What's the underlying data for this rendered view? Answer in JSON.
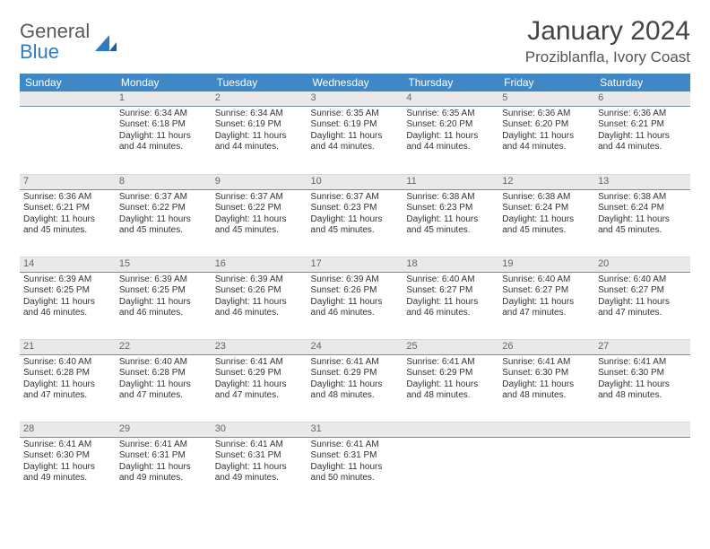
{
  "logo": {
    "line1": "General",
    "line2": "Blue"
  },
  "title": "January 2024",
  "location": "Proziblanfla, Ivory Coast",
  "colors": {
    "header_bg": "#3f88c5",
    "header_text": "#ffffff",
    "daynum_bg": "#e9e9e9",
    "daynum_border": "#6f91b0",
    "text": "#333333",
    "logo_gray": "#55595c",
    "logo_blue": "#2f7bbf"
  },
  "weekdays": [
    "Sunday",
    "Monday",
    "Tuesday",
    "Wednesday",
    "Thursday",
    "Friday",
    "Saturday"
  ],
  "weeks": [
    [
      {
        "n": "",
        "sr": "",
        "ss": "",
        "d1": "",
        "d2": ""
      },
      {
        "n": "1",
        "sr": "Sunrise: 6:34 AM",
        "ss": "Sunset: 6:18 PM",
        "d1": "Daylight: 11 hours",
        "d2": "and 44 minutes."
      },
      {
        "n": "2",
        "sr": "Sunrise: 6:34 AM",
        "ss": "Sunset: 6:19 PM",
        "d1": "Daylight: 11 hours",
        "d2": "and 44 minutes."
      },
      {
        "n": "3",
        "sr": "Sunrise: 6:35 AM",
        "ss": "Sunset: 6:19 PM",
        "d1": "Daylight: 11 hours",
        "d2": "and 44 minutes."
      },
      {
        "n": "4",
        "sr": "Sunrise: 6:35 AM",
        "ss": "Sunset: 6:20 PM",
        "d1": "Daylight: 11 hours",
        "d2": "and 44 minutes."
      },
      {
        "n": "5",
        "sr": "Sunrise: 6:36 AM",
        "ss": "Sunset: 6:20 PM",
        "d1": "Daylight: 11 hours",
        "d2": "and 44 minutes."
      },
      {
        "n": "6",
        "sr": "Sunrise: 6:36 AM",
        "ss": "Sunset: 6:21 PM",
        "d1": "Daylight: 11 hours",
        "d2": "and 44 minutes."
      }
    ],
    [
      {
        "n": "7",
        "sr": "Sunrise: 6:36 AM",
        "ss": "Sunset: 6:21 PM",
        "d1": "Daylight: 11 hours",
        "d2": "and 45 minutes."
      },
      {
        "n": "8",
        "sr": "Sunrise: 6:37 AM",
        "ss": "Sunset: 6:22 PM",
        "d1": "Daylight: 11 hours",
        "d2": "and 45 minutes."
      },
      {
        "n": "9",
        "sr": "Sunrise: 6:37 AM",
        "ss": "Sunset: 6:22 PM",
        "d1": "Daylight: 11 hours",
        "d2": "and 45 minutes."
      },
      {
        "n": "10",
        "sr": "Sunrise: 6:37 AM",
        "ss": "Sunset: 6:23 PM",
        "d1": "Daylight: 11 hours",
        "d2": "and 45 minutes."
      },
      {
        "n": "11",
        "sr": "Sunrise: 6:38 AM",
        "ss": "Sunset: 6:23 PM",
        "d1": "Daylight: 11 hours",
        "d2": "and 45 minutes."
      },
      {
        "n": "12",
        "sr": "Sunrise: 6:38 AM",
        "ss": "Sunset: 6:24 PM",
        "d1": "Daylight: 11 hours",
        "d2": "and 45 minutes."
      },
      {
        "n": "13",
        "sr": "Sunrise: 6:38 AM",
        "ss": "Sunset: 6:24 PM",
        "d1": "Daylight: 11 hours",
        "d2": "and 45 minutes."
      }
    ],
    [
      {
        "n": "14",
        "sr": "Sunrise: 6:39 AM",
        "ss": "Sunset: 6:25 PM",
        "d1": "Daylight: 11 hours",
        "d2": "and 46 minutes."
      },
      {
        "n": "15",
        "sr": "Sunrise: 6:39 AM",
        "ss": "Sunset: 6:25 PM",
        "d1": "Daylight: 11 hours",
        "d2": "and 46 minutes."
      },
      {
        "n": "16",
        "sr": "Sunrise: 6:39 AM",
        "ss": "Sunset: 6:26 PM",
        "d1": "Daylight: 11 hours",
        "d2": "and 46 minutes."
      },
      {
        "n": "17",
        "sr": "Sunrise: 6:39 AM",
        "ss": "Sunset: 6:26 PM",
        "d1": "Daylight: 11 hours",
        "d2": "and 46 minutes."
      },
      {
        "n": "18",
        "sr": "Sunrise: 6:40 AM",
        "ss": "Sunset: 6:27 PM",
        "d1": "Daylight: 11 hours",
        "d2": "and 46 minutes."
      },
      {
        "n": "19",
        "sr": "Sunrise: 6:40 AM",
        "ss": "Sunset: 6:27 PM",
        "d1": "Daylight: 11 hours",
        "d2": "and 47 minutes."
      },
      {
        "n": "20",
        "sr": "Sunrise: 6:40 AM",
        "ss": "Sunset: 6:27 PM",
        "d1": "Daylight: 11 hours",
        "d2": "and 47 minutes."
      }
    ],
    [
      {
        "n": "21",
        "sr": "Sunrise: 6:40 AM",
        "ss": "Sunset: 6:28 PM",
        "d1": "Daylight: 11 hours",
        "d2": "and 47 minutes."
      },
      {
        "n": "22",
        "sr": "Sunrise: 6:40 AM",
        "ss": "Sunset: 6:28 PM",
        "d1": "Daylight: 11 hours",
        "d2": "and 47 minutes."
      },
      {
        "n": "23",
        "sr": "Sunrise: 6:41 AM",
        "ss": "Sunset: 6:29 PM",
        "d1": "Daylight: 11 hours",
        "d2": "and 47 minutes."
      },
      {
        "n": "24",
        "sr": "Sunrise: 6:41 AM",
        "ss": "Sunset: 6:29 PM",
        "d1": "Daylight: 11 hours",
        "d2": "and 48 minutes."
      },
      {
        "n": "25",
        "sr": "Sunrise: 6:41 AM",
        "ss": "Sunset: 6:29 PM",
        "d1": "Daylight: 11 hours",
        "d2": "and 48 minutes."
      },
      {
        "n": "26",
        "sr": "Sunrise: 6:41 AM",
        "ss": "Sunset: 6:30 PM",
        "d1": "Daylight: 11 hours",
        "d2": "and 48 minutes."
      },
      {
        "n": "27",
        "sr": "Sunrise: 6:41 AM",
        "ss": "Sunset: 6:30 PM",
        "d1": "Daylight: 11 hours",
        "d2": "and 48 minutes."
      }
    ],
    [
      {
        "n": "28",
        "sr": "Sunrise: 6:41 AM",
        "ss": "Sunset: 6:30 PM",
        "d1": "Daylight: 11 hours",
        "d2": "and 49 minutes."
      },
      {
        "n": "29",
        "sr": "Sunrise: 6:41 AM",
        "ss": "Sunset: 6:31 PM",
        "d1": "Daylight: 11 hours",
        "d2": "and 49 minutes."
      },
      {
        "n": "30",
        "sr": "Sunrise: 6:41 AM",
        "ss": "Sunset: 6:31 PM",
        "d1": "Daylight: 11 hours",
        "d2": "and 49 minutes."
      },
      {
        "n": "31",
        "sr": "Sunrise: 6:41 AM",
        "ss": "Sunset: 6:31 PM",
        "d1": "Daylight: 11 hours",
        "d2": "and 50 minutes."
      },
      {
        "n": "",
        "sr": "",
        "ss": "",
        "d1": "",
        "d2": ""
      },
      {
        "n": "",
        "sr": "",
        "ss": "",
        "d1": "",
        "d2": ""
      },
      {
        "n": "",
        "sr": "",
        "ss": "",
        "d1": "",
        "d2": ""
      }
    ]
  ]
}
